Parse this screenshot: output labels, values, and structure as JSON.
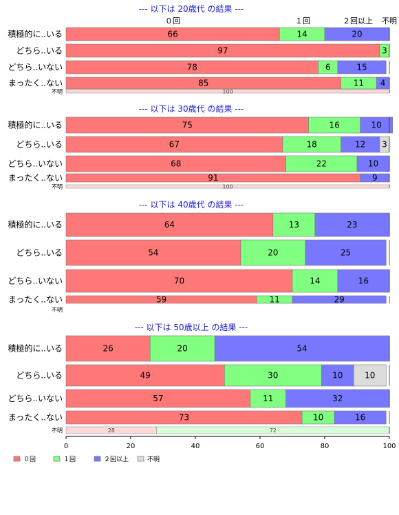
{
  "chart_data": {
    "type": "bar",
    "orientation": "horizontal",
    "stacked": true,
    "xlim": [
      0,
      100
    ],
    "x_ticks": [
      "0",
      "20",
      "40",
      "60",
      "80",
      "100"
    ],
    "column_headers": [
      "０回",
      "１回",
      "２回以上",
      "不明"
    ],
    "legend": {
      "placement": "bottom-left",
      "entries": [
        {
          "label": "０回",
          "color": "#ff7878"
        },
        {
          "label": "１回",
          "color": "#80ff80"
        },
        {
          "label": "２回以上",
          "color": "#7878ff"
        },
        {
          "label": "不明",
          "color": "#dcdcdc"
        }
      ]
    },
    "panels": [
      {
        "title": "--- 以下は 20歳代 の結果 ---",
        "rows": [
          {
            "label": "積極的に..いる",
            "values": [
              66,
              14,
              20,
              0
            ],
            "text": [
              "66",
              "14",
              "20",
              ""
            ]
          },
          {
            "label": "どちら..いる",
            "values": [
              97,
              3,
              0,
              0
            ],
            "text": [
              "97",
              "3",
              "",
              ""
            ]
          },
          {
            "label": "どちら..いない",
            "values": [
              78,
              6,
              15,
              0
            ],
            "text": [
              "78",
              "6",
              "15",
              ""
            ]
          },
          {
            "label": "まったく..ない",
            "values": [
              85,
              11,
              4,
              0
            ],
            "text": [
              "85",
              "11",
              "4",
              ""
            ]
          },
          {
            "label": "不明",
            "small": true,
            "values": [
              100,
              0,
              0,
              0
            ],
            "text": [
              "100",
              "",
              "",
              ""
            ]
          }
        ]
      },
      {
        "title": "--- 以下は 30歳代 の結果 ---",
        "rows": [
          {
            "label": "積極的に..いる",
            "values": [
              75,
              16,
              10,
              0
            ],
            "text": [
              "75",
              "16",
              "10",
              ""
            ]
          },
          {
            "label": "どちら..いる",
            "values": [
              67,
              18,
              12,
              3
            ],
            "text": [
              "67",
              "18",
              "12",
              "3"
            ]
          },
          {
            "label": "どちら..いない",
            "values": [
              68,
              22,
              10,
              0
            ],
            "text": [
              "68",
              "22",
              "10",
              ""
            ]
          },
          {
            "label": "まったく..ない",
            "values": [
              91,
              0,
              9,
              0
            ],
            "text": [
              "91",
              "",
              "9",
              ""
            ]
          },
          {
            "label": "不明",
            "small": true,
            "values": [
              100,
              0,
              0,
              0
            ],
            "text": [
              "100",
              "",
              "",
              ""
            ]
          }
        ]
      },
      {
        "title": "--- 以下は 40歳代 の結果 ---",
        "rows": [
          {
            "label": "積極的に..いる",
            "values": [
              64,
              13,
              23,
              0
            ],
            "text": [
              "64",
              "13",
              "23",
              ""
            ]
          },
          {
            "label": "どちら..いる",
            "values": [
              54,
              20,
              25,
              0
            ],
            "text": [
              "54",
              "20",
              "25",
              ""
            ]
          },
          {
            "label": "どちら..いない",
            "values": [
              70,
              14,
              16,
              0
            ],
            "text": [
              "70",
              "14",
              "16",
              ""
            ]
          },
          {
            "label": "まったく..ない",
            "values": [
              59,
              11,
              29,
              0
            ],
            "text": [
              "59",
              "11",
              "29",
              ""
            ]
          },
          {
            "label": "不明",
            "small": true,
            "values": [
              0,
              0,
              0,
              0
            ],
            "text": [
              "",
              "",
              "",
              ""
            ]
          }
        ]
      },
      {
        "title": "--- 以下は 50歳以上 の結果 ---",
        "rows": [
          {
            "label": "積極的に..いる",
            "values": [
              26,
              20,
              54,
              0
            ],
            "text": [
              "26",
              "20",
              "54",
              ""
            ]
          },
          {
            "label": "どちら..いる",
            "values": [
              49,
              30,
              10,
              10
            ],
            "text": [
              "49",
              "30",
              "10",
              "10"
            ]
          },
          {
            "label": "どちら..いない",
            "values": [
              57,
              11,
              32,
              0
            ],
            "text": [
              "57",
              "11",
              "32",
              ""
            ]
          },
          {
            "label": "まったく..ない",
            "values": [
              73,
              10,
              16,
              0
            ],
            "text": [
              "73",
              "10",
              "16",
              ""
            ]
          },
          {
            "label": "不明",
            "small": true,
            "values": [
              28,
              72,
              0,
              0
            ],
            "text": [
              "28",
              "72",
              "",
              ""
            ]
          }
        ]
      }
    ]
  }
}
